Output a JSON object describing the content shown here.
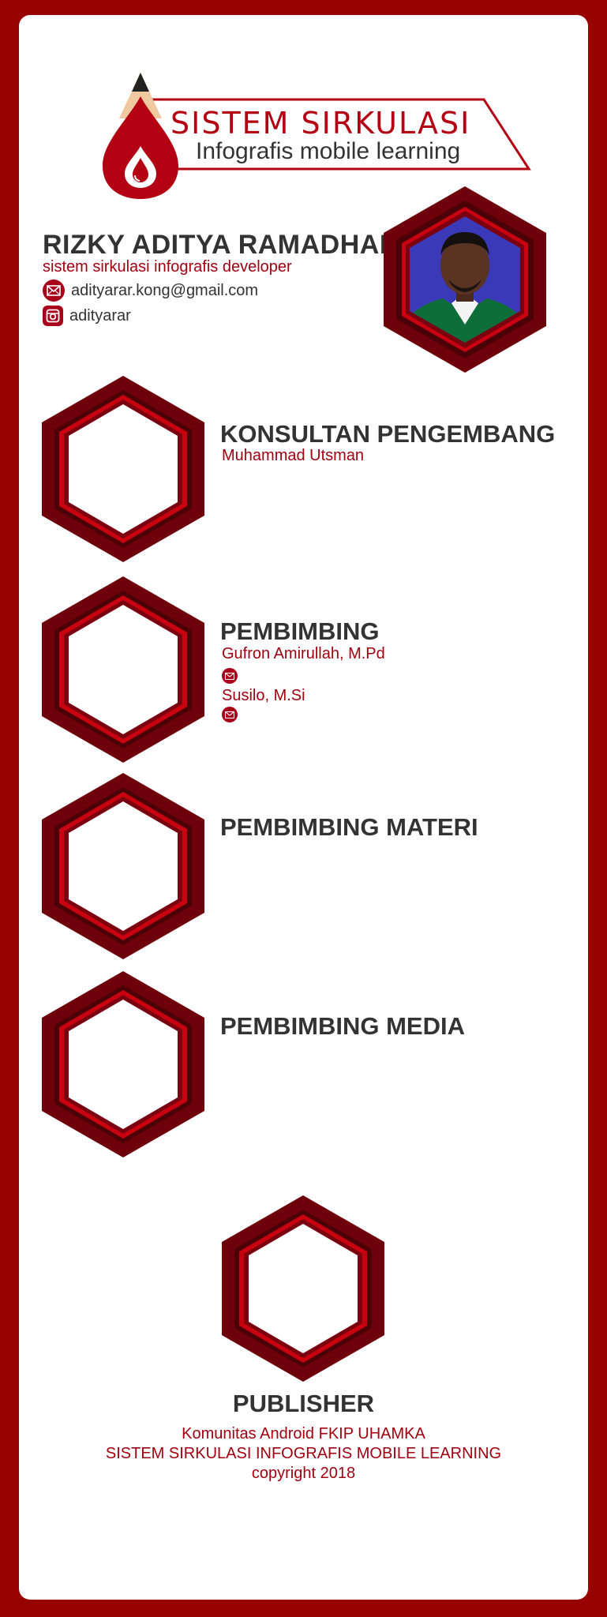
{
  "logo": {
    "title": "SISTEM SIRKULASI",
    "subtitle": "Infografis mobile learning",
    "icon": "pencil-blood-drop-icon"
  },
  "profile": {
    "name": "RIZKY ADITYA RAMADHAN",
    "role": "sistem sirkulasi infografis developer",
    "email": "adityarar.kong@gmail.com",
    "instagram": "adityarar",
    "photo_icon": "person-photo"
  },
  "sections": {
    "konsultan": {
      "title": "KONSULTAN PENGEMBANG",
      "name": "Muhammad Utsman"
    },
    "pembimbing": {
      "title": "PEMBIMBING",
      "names": [
        "Gufron Amirullah, M.Pd",
        "Susilo, M.Si"
      ]
    },
    "materi": {
      "title": "PEMBIMBING MATERI"
    },
    "media": {
      "title": "PEMBIMBING MEDIA"
    }
  },
  "publisher": {
    "title": "PUBLISHER",
    "line1": "Komunitas Android FKIP UHAMKA",
    "line2": "SISTEM SIRKULASI INFOGRAFIS MOBILE LEARNING",
    "line3": "copyright 2018"
  },
  "colors": {
    "frame": "#990000",
    "dark_red": "#5e0008",
    "accent_red": "#b30012",
    "text": "#333333"
  }
}
